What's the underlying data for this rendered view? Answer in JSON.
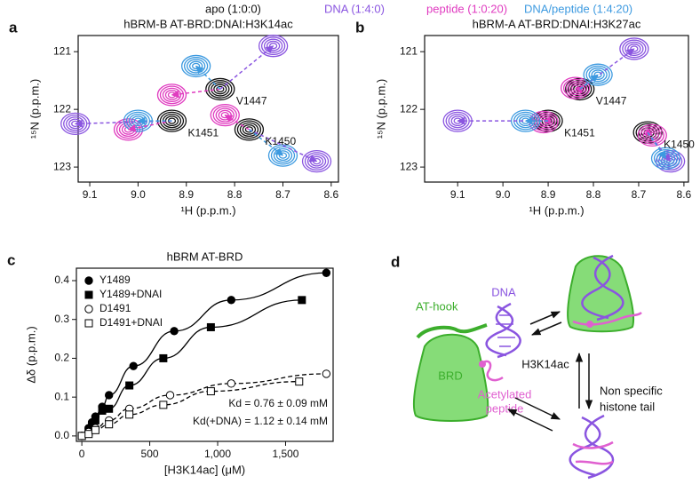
{
  "chart_data": [
    {
      "type": "nmr",
      "panel": "a",
      "title": "hBRM-B AT-BRD:DNAI:H3K14ac",
      "xlabel": "¹H (p.p.m.)",
      "ylabel": "¹⁵N (p.p.m.)",
      "xlim": [
        9.124,
        8.585
      ],
      "ylim": [
        123.26,
        120.72
      ],
      "xticks": [
        9.1,
        {
          "value": 9,
          "label": "9.0"
        },
        8.9,
        8.8,
        8.7,
        8.6
      ],
      "yticks": [
        121,
        122,
        123
      ],
      "peak_labels": [
        "V1447",
        "K1450",
        "K1451"
      ],
      "series": [
        {
          "name": "apo (1:0:0)",
          "color": "#111111",
          "x": [
            8.83,
            8.77,
            8.93
          ],
          "y": [
            121.65,
            122.35,
            122.2
          ]
        },
        {
          "name": "DNA (1:4:0)",
          "color": "#8a55e0",
          "x": [
            8.72,
            8.63,
            9.13
          ],
          "y": [
            120.9,
            122.9,
            122.25
          ]
        },
        {
          "name": "peptide (1:0:20)",
          "color": "#e03cc0",
          "x": [
            8.93,
            8.82,
            9.02
          ],
          "y": [
            121.75,
            122.1,
            122.35
          ]
        },
        {
          "name": "DNA/peptide (1:4:20)",
          "color": "#3d9ae0",
          "x": [
            8.88,
            8.7,
            9.0
          ],
          "y": [
            121.25,
            122.8,
            122.2
          ]
        }
      ]
    },
    {
      "type": "nmr",
      "panel": "b",
      "title": "hBRM-A AT-BRD:DNAI:H3K27ac",
      "xlabel": "¹H (p.p.m.)",
      "ylabel": "¹⁵N (p.p.m.)",
      "xlim": [
        9.173,
        8.59
      ],
      "ylim": [
        123.26,
        120.72
      ],
      "xticks": [
        9.1,
        {
          "value": 9,
          "label": "9.0"
        },
        8.9,
        8.8,
        8.7,
        8.6
      ],
      "yticks": [
        121,
        122,
        123
      ],
      "peak_labels": [
        "V1447",
        "K1450",
        "K1451"
      ],
      "series": [
        {
          "color": "#111111",
          "x": [
            8.83,
            8.68,
            8.9
          ],
          "y": [
            121.65,
            122.4,
            122.2
          ]
        },
        {
          "color": "#8a55e0",
          "x": [
            8.71,
            8.63,
            9.1
          ],
          "y": [
            120.95,
            122.9,
            122.2
          ]
        },
        {
          "color": "#e03cc0",
          "x": [
            8.84,
            8.67,
            8.91
          ],
          "y": [
            121.63,
            122.45,
            122.22
          ]
        },
        {
          "color": "#3d9ae0",
          "x": [
            8.79,
            8.64,
            8.95
          ],
          "y": [
            121.4,
            122.85,
            122.2
          ]
        }
      ]
    },
    {
      "type": "scatter",
      "panel": "c",
      "title": "hBRM AT-BRD",
      "xlabel": "[H3K14ac] (μM)",
      "ylabel": "Δδ (p.p.m.)",
      "xlim": [
        -40,
        1850
      ],
      "ylim": [
        -0.014,
        0.432
      ],
      "xticks": [
        0,
        500,
        {
          "value": 1000,
          "label": "1,000"
        },
        {
          "value": 1500,
          "label": "1,500"
        }
      ],
      "yticks": [
        {
          "value": 0,
          "label": "0.0"
        },
        0.1,
        0.2,
        0.3,
        0.4
      ],
      "legend": "upper left",
      "annotations": [
        "Kd = 0.76 ± 0.09 mM",
        "Kd(+DNA) = 1.12 ± 0.14 mM"
      ],
      "series": [
        {
          "name": "Y1489",
          "color": "#000000",
          "marker": "circle",
          "filled": true,
          "line_style": "solid",
          "x": [
            0,
            50,
            75,
            100,
            150,
            200,
            380,
            680,
            1100,
            1800
          ],
          "values": [
            0,
            0.02,
            0.035,
            0.05,
            0.075,
            0.105,
            0.18,
            0.27,
            0.35,
            0.42
          ]
        },
        {
          "name": "Y1489+DNAI",
          "color": "#000000",
          "marker": "square",
          "filled": true,
          "line_style": "solid",
          "x": [
            0,
            50,
            75,
            100,
            150,
            200,
            350,
            600,
            950,
            1620
          ],
          "values": [
            0,
            0.01,
            0.025,
            0.04,
            0.065,
            0.07,
            0.13,
            0.2,
            0.28,
            0.35
          ]
        },
        {
          "name": "D1491",
          "color": "#000000",
          "marker": "circle",
          "filled": false,
          "line_style": "dashed",
          "x": [
            0,
            50,
            100,
            200,
            350,
            650,
            1100,
            1800
          ],
          "values": [
            0,
            0.01,
            0.02,
            0.04,
            0.07,
            0.105,
            0.135,
            0.16
          ]
        },
        {
          "name": "D1491+DNAI",
          "color": "#000000",
          "marker": "square",
          "filled": false,
          "line_style": "dashed",
          "x": [
            0,
            50,
            100,
            200,
            350,
            600,
            950,
            1600
          ],
          "values": [
            0,
            0.005,
            0.015,
            0.03,
            0.055,
            0.08,
            0.115,
            0.14
          ]
        }
      ]
    }
  ],
  "diagram": {
    "panel": "d",
    "at_hook": "AT-hook",
    "dna": "DNA",
    "brd": "BRD",
    "peptide": [
      "Acetylated",
      "peptide"
    ],
    "h3k14ac": "H3K14ac",
    "histone_tail": [
      "Non specific",
      "histone tail"
    ]
  }
}
